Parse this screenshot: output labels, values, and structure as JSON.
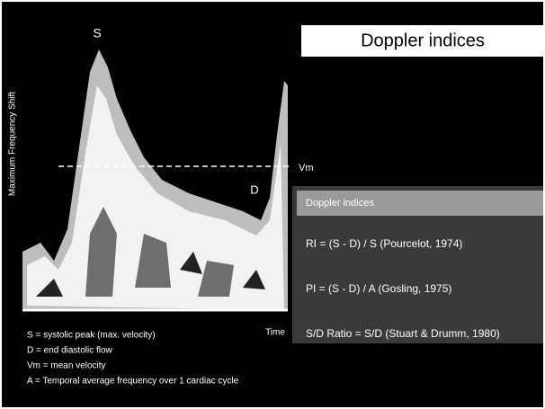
{
  "labels": {
    "peak": "S",
    "diastolic": "D",
    "mean": "Vm",
    "y_axis": "Maximum Frequency Shift",
    "x_axis": "Time"
  },
  "title": "Doppler indices",
  "panel": {
    "header": "Doppler indices",
    "rows": [
      "RI = (S - D) / S (Pourcelot, 1974)",
      "PI = (S - D) / A (Gosling, 1975)",
      "S/D Ratio = S/D (Stuart & Drumm, 1980)"
    ]
  },
  "legend": [
    "S = systolic peak (max. velocity)",
    "D = end diastolic flow",
    "Vm = mean velocity",
    "A = Temporal average frequency over 1 cardiac cycle"
  ]
}
